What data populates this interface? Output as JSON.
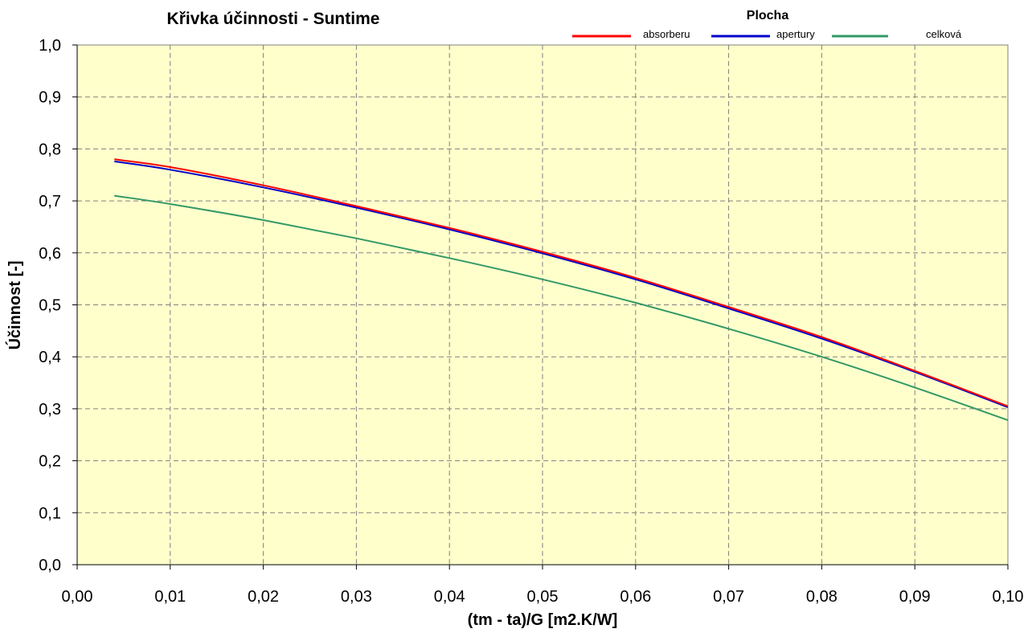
{
  "chart_data": {
    "type": "line",
    "title": "Křivka účinnosti - Suntime",
    "legend_title": "Plocha",
    "legend_position": "top-right",
    "xlabel": "(tm - ta)/G [m2.K/W]",
    "ylabel": "Účinnost [-]",
    "xlim": [
      0,
      0.1
    ],
    "ylim": [
      0,
      1.0
    ],
    "grid": true,
    "background": "#FFFFCC",
    "x_ticks": [
      {
        "value": 0.0,
        "label": "0,00"
      },
      {
        "value": 0.01,
        "label": "0,01"
      },
      {
        "value": 0.02,
        "label": "0,02"
      },
      {
        "value": 0.03,
        "label": "0,03"
      },
      {
        "value": 0.04,
        "label": "0,04"
      },
      {
        "value": 0.05,
        "label": "0,05"
      },
      {
        "value": 0.06,
        "label": "0,06"
      },
      {
        "value": 0.07,
        "label": "0,07"
      },
      {
        "value": 0.08,
        "label": "0,08"
      },
      {
        "value": 0.09,
        "label": "0,09"
      },
      {
        "value": 0.1,
        "label": "0,10"
      }
    ],
    "y_ticks": [
      {
        "value": 0.0,
        "label": "0,0"
      },
      {
        "value": 0.1,
        "label": "0,1"
      },
      {
        "value": 0.2,
        "label": "0,2"
      },
      {
        "value": 0.3,
        "label": "0,3"
      },
      {
        "value": 0.4,
        "label": "0,4"
      },
      {
        "value": 0.5,
        "label": "0,5"
      },
      {
        "value": 0.6,
        "label": "0,6"
      },
      {
        "value": 0.7,
        "label": "0,7"
      },
      {
        "value": 0.8,
        "label": "0,8"
      },
      {
        "value": 0.9,
        "label": "0,9"
      },
      {
        "value": 1.0,
        "label": "1,0"
      }
    ],
    "series": [
      {
        "name": "absorberu",
        "color": "#FF0000",
        "x": [
          0.004,
          0.01,
          0.02,
          0.03,
          0.04,
          0.05,
          0.06,
          0.07,
          0.08,
          0.09,
          0.1
        ],
        "y": [
          0.78,
          0.765,
          0.73,
          0.69,
          0.648,
          0.602,
          0.552,
          0.496,
          0.438,
          0.373,
          0.305
        ]
      },
      {
        "name": "apertury",
        "color": "#0000CC",
        "x": [
          0.004,
          0.01,
          0.02,
          0.03,
          0.04,
          0.05,
          0.06,
          0.07,
          0.08,
          0.09,
          0.1
        ],
        "y": [
          0.776,
          0.76,
          0.726,
          0.687,
          0.645,
          0.599,
          0.549,
          0.493,
          0.435,
          0.371,
          0.303
        ]
      },
      {
        "name": "celková",
        "color": "#339966",
        "x": [
          0.004,
          0.01,
          0.02,
          0.03,
          0.04,
          0.05,
          0.06,
          0.07,
          0.08,
          0.09,
          0.1
        ],
        "y": [
          0.71,
          0.694,
          0.663,
          0.628,
          0.59,
          0.549,
          0.504,
          0.454,
          0.4,
          0.341,
          0.278
        ]
      }
    ]
  }
}
